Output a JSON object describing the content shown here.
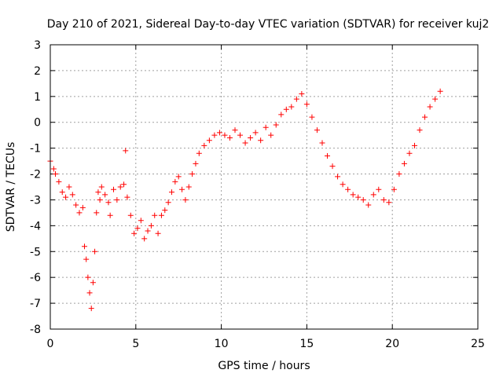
{
  "chart_data": {
    "type": "scatter",
    "title": "Day 210 of 2021, Sidereal Day-to-day VTEC variation (SDTVAR) for receiver kuj2",
    "xlabel": "GPS time / hours",
    "ylabel": "SDTVAR / TECUs",
    "xlim": [
      0,
      25
    ],
    "ylim": [
      -8,
      3
    ],
    "xticks": [
      0,
      5,
      10,
      15,
      20,
      25
    ],
    "yticks": [
      -8,
      -7,
      -6,
      -5,
      -4,
      -3,
      -2,
      -1,
      0,
      1,
      2,
      3
    ],
    "grid": true,
    "marker": "+",
    "color": "#ff0000",
    "series": [
      {
        "name": "SDTVAR",
        "x": [
          0,
          0.2,
          0.3,
          0.5,
          0.7,
          0.9,
          1.1,
          1.3,
          1.5,
          1.7,
          1.9,
          2.0,
          2.1,
          2.2,
          2.3,
          2.4,
          2.5,
          2.6,
          2.7,
          2.8,
          2.9,
          3.0,
          3.2,
          3.4,
          3.5,
          3.7,
          3.9,
          4.1,
          4.3,
          4.4,
          4.5,
          4.7,
          4.9,
          5.1,
          5.3,
          5.5,
          5.7,
          5.9,
          6.1,
          6.3,
          6.5,
          6.7,
          6.9,
          7.1,
          7.3,
          7.5,
          7.7,
          7.9,
          8.1,
          8.3,
          8.5,
          8.7,
          9.0,
          9.3,
          9.6,
          9.9,
          10.2,
          10.5,
          10.8,
          11.1,
          11.4,
          11.7,
          12.0,
          12.3,
          12.6,
          12.9,
          13.2,
          13.5,
          13.8,
          14.1,
          14.4,
          14.7,
          15.0,
          15.3,
          15.6,
          15.9,
          16.2,
          16.5,
          16.8,
          17.1,
          17.4,
          17.7,
          18.0,
          18.3,
          18.6,
          18.9,
          19.2,
          19.5,
          19.8,
          20.1,
          20.4,
          20.7,
          21.0,
          21.3,
          21.6,
          21.9,
          22.2,
          22.5,
          22.8
        ],
        "y": [
          -1.5,
          -1.8,
          -2.0,
          -2.3,
          -2.7,
          -2.9,
          -2.5,
          -2.8,
          -3.2,
          -3.5,
          -3.3,
          -4.8,
          -5.3,
          -6.0,
          -6.6,
          -7.2,
          -6.2,
          -5.0,
          -3.5,
          -2.7,
          -3.0,
          -2.5,
          -2.8,
          -3.1,
          -3.6,
          -2.6,
          -3.0,
          -2.5,
          -2.4,
          -1.1,
          -2.9,
          -3.6,
          -4.3,
          -4.1,
          -3.8,
          -4.5,
          -4.2,
          -4.0,
          -3.6,
          -4.3,
          -3.6,
          -3.4,
          -3.1,
          -2.7,
          -2.3,
          -2.1,
          -2.6,
          -3.0,
          -2.5,
          -2.0,
          -1.6,
          -1.2,
          -0.9,
          -0.7,
          -0.5,
          -0.4,
          -0.5,
          -0.6,
          -0.3,
          -0.5,
          -0.8,
          -0.6,
          -0.4,
          -0.7,
          -0.2,
          -0.5,
          -0.1,
          0.3,
          0.5,
          0.6,
          0.9,
          1.1,
          0.7,
          0.2,
          -0.3,
          -0.8,
          -1.3,
          -1.7,
          -2.1,
          -2.4,
          -2.6,
          -2.8,
          -2.9,
          -3.0,
          -3.2,
          -2.8,
          -2.6,
          -3.0,
          -3.1,
          -2.6,
          -2.0,
          -1.6,
          -1.2,
          -0.9,
          -0.3,
          0.2,
          0.6,
          0.9,
          1.2
        ]
      }
    ]
  }
}
